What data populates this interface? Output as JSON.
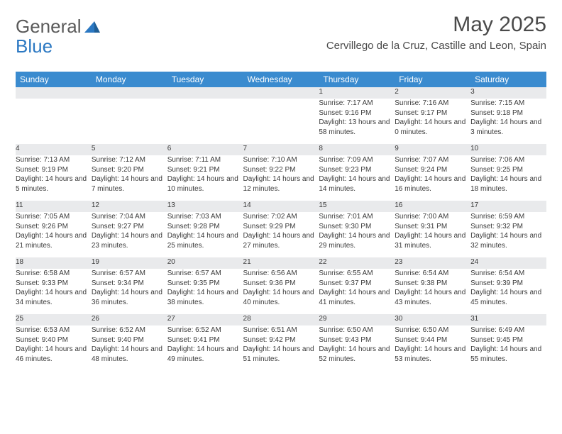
{
  "logo": {
    "word1": "General",
    "word2": "Blue"
  },
  "title": "May 2025",
  "location": "Cervillego de la Cruz, Castille and Leon, Spain",
  "colors": {
    "header_bg": "#3a8bcf",
    "header_text": "#ffffff",
    "daynum_bg": "#e9eaec",
    "border": "#3a8bcf",
    "text": "#3a3a3a",
    "logo_gray": "#5a5a5a",
    "logo_blue": "#2b78c2"
  },
  "weekdays": [
    "Sunday",
    "Monday",
    "Tuesday",
    "Wednesday",
    "Thursday",
    "Friday",
    "Saturday"
  ],
  "weeks": [
    [
      null,
      null,
      null,
      null,
      {
        "n": "1",
        "sr": "7:17 AM",
        "ss": "9:16 PM",
        "dl": "13 hours and 58 minutes."
      },
      {
        "n": "2",
        "sr": "7:16 AM",
        "ss": "9:17 PM",
        "dl": "14 hours and 0 minutes."
      },
      {
        "n": "3",
        "sr": "7:15 AM",
        "ss": "9:18 PM",
        "dl": "14 hours and 3 minutes."
      }
    ],
    [
      {
        "n": "4",
        "sr": "7:13 AM",
        "ss": "9:19 PM",
        "dl": "14 hours and 5 minutes."
      },
      {
        "n": "5",
        "sr": "7:12 AM",
        "ss": "9:20 PM",
        "dl": "14 hours and 7 minutes."
      },
      {
        "n": "6",
        "sr": "7:11 AM",
        "ss": "9:21 PM",
        "dl": "14 hours and 10 minutes."
      },
      {
        "n": "7",
        "sr": "7:10 AM",
        "ss": "9:22 PM",
        "dl": "14 hours and 12 minutes."
      },
      {
        "n": "8",
        "sr": "7:09 AM",
        "ss": "9:23 PM",
        "dl": "14 hours and 14 minutes."
      },
      {
        "n": "9",
        "sr": "7:07 AM",
        "ss": "9:24 PM",
        "dl": "14 hours and 16 minutes."
      },
      {
        "n": "10",
        "sr": "7:06 AM",
        "ss": "9:25 PM",
        "dl": "14 hours and 18 minutes."
      }
    ],
    [
      {
        "n": "11",
        "sr": "7:05 AM",
        "ss": "9:26 PM",
        "dl": "14 hours and 21 minutes."
      },
      {
        "n": "12",
        "sr": "7:04 AM",
        "ss": "9:27 PM",
        "dl": "14 hours and 23 minutes."
      },
      {
        "n": "13",
        "sr": "7:03 AM",
        "ss": "9:28 PM",
        "dl": "14 hours and 25 minutes."
      },
      {
        "n": "14",
        "sr": "7:02 AM",
        "ss": "9:29 PM",
        "dl": "14 hours and 27 minutes."
      },
      {
        "n": "15",
        "sr": "7:01 AM",
        "ss": "9:30 PM",
        "dl": "14 hours and 29 minutes."
      },
      {
        "n": "16",
        "sr": "7:00 AM",
        "ss": "9:31 PM",
        "dl": "14 hours and 31 minutes."
      },
      {
        "n": "17",
        "sr": "6:59 AM",
        "ss": "9:32 PM",
        "dl": "14 hours and 32 minutes."
      }
    ],
    [
      {
        "n": "18",
        "sr": "6:58 AM",
        "ss": "9:33 PM",
        "dl": "14 hours and 34 minutes."
      },
      {
        "n": "19",
        "sr": "6:57 AM",
        "ss": "9:34 PM",
        "dl": "14 hours and 36 minutes."
      },
      {
        "n": "20",
        "sr": "6:57 AM",
        "ss": "9:35 PM",
        "dl": "14 hours and 38 minutes."
      },
      {
        "n": "21",
        "sr": "6:56 AM",
        "ss": "9:36 PM",
        "dl": "14 hours and 40 minutes."
      },
      {
        "n": "22",
        "sr": "6:55 AM",
        "ss": "9:37 PM",
        "dl": "14 hours and 41 minutes."
      },
      {
        "n": "23",
        "sr": "6:54 AM",
        "ss": "9:38 PM",
        "dl": "14 hours and 43 minutes."
      },
      {
        "n": "24",
        "sr": "6:54 AM",
        "ss": "9:39 PM",
        "dl": "14 hours and 45 minutes."
      }
    ],
    [
      {
        "n": "25",
        "sr": "6:53 AM",
        "ss": "9:40 PM",
        "dl": "14 hours and 46 minutes."
      },
      {
        "n": "26",
        "sr": "6:52 AM",
        "ss": "9:40 PM",
        "dl": "14 hours and 48 minutes."
      },
      {
        "n": "27",
        "sr": "6:52 AM",
        "ss": "9:41 PM",
        "dl": "14 hours and 49 minutes."
      },
      {
        "n": "28",
        "sr": "6:51 AM",
        "ss": "9:42 PM",
        "dl": "14 hours and 51 minutes."
      },
      {
        "n": "29",
        "sr": "6:50 AM",
        "ss": "9:43 PM",
        "dl": "14 hours and 52 minutes."
      },
      {
        "n": "30",
        "sr": "6:50 AM",
        "ss": "9:44 PM",
        "dl": "14 hours and 53 minutes."
      },
      {
        "n": "31",
        "sr": "6:49 AM",
        "ss": "9:45 PM",
        "dl": "14 hours and 55 minutes."
      }
    ]
  ],
  "labels": {
    "sunrise": "Sunrise:",
    "sunset": "Sunset:",
    "daylight": "Daylight:"
  }
}
